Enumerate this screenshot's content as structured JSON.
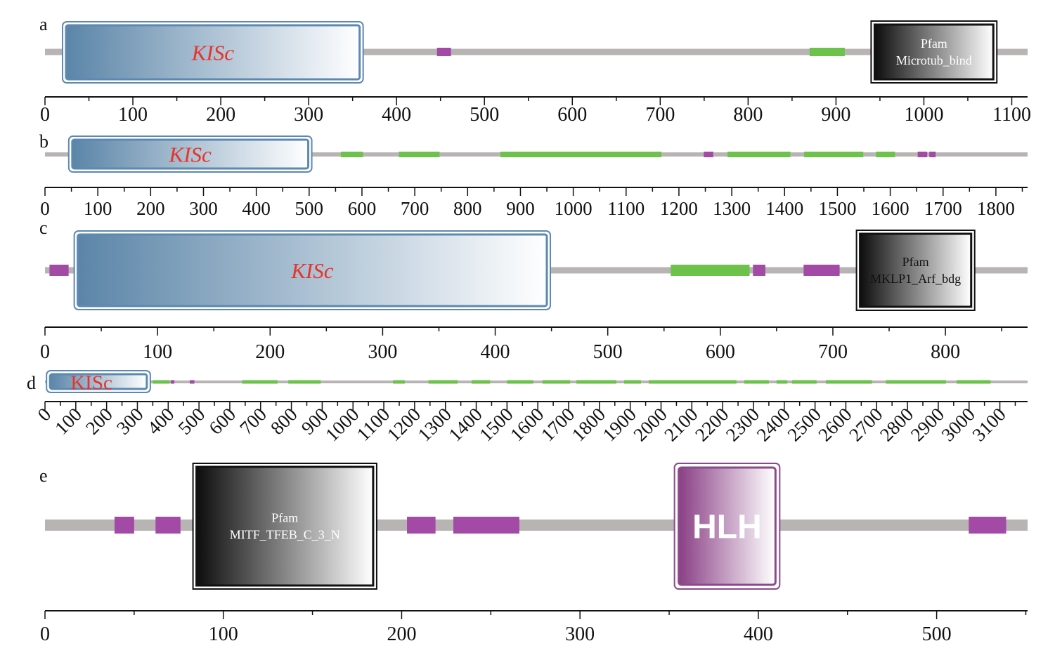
{
  "colors": {
    "backbone": "#b9b4b4",
    "motif_purple": "#a24aa6",
    "motif_green": "#6cc24a",
    "kisc_dark": "#5b85a8",
    "kisc_border": "#5d89b0",
    "kisc_text": "#e8332a",
    "pfam_border": "#111111",
    "hlh_dark": "#8a3f86",
    "hlh_border": "#8a4a8a"
  },
  "panels": [
    {
      "label": "a",
      "length": 1118,
      "ticks": [
        "0",
        "100",
        "200",
        "300",
        "400",
        "500",
        "600",
        "700",
        "800",
        "900",
        "1000",
        "1100"
      ],
      "tick_values": [
        0,
        100,
        200,
        300,
        400,
        500,
        600,
        700,
        800,
        900,
        1000,
        1100
      ],
      "domains": [
        {
          "type": "KISc",
          "label": "KISc",
          "start": 20,
          "end": 362
        },
        {
          "type": "Pfam",
          "label_line1": "Pfam",
          "label_line2": "Microtub_bind",
          "start": 940,
          "end": 1083
        }
      ],
      "motifs": [
        {
          "color": "purple",
          "start": 446,
          "end": 462
        },
        {
          "color": "green",
          "start": 870,
          "end": 910
        }
      ]
    },
    {
      "label": "b",
      "length": 1860,
      "ticks": [
        "0",
        "100",
        "200",
        "300",
        "400",
        "500",
        "600",
        "700",
        "800",
        "900",
        "1000",
        "1100",
        "1200",
        "1300",
        "1400",
        "1500",
        "1600",
        "1700",
        "1800"
      ],
      "tick_values": [
        0,
        100,
        200,
        300,
        400,
        500,
        600,
        700,
        800,
        900,
        1000,
        1100,
        1200,
        1300,
        1400,
        1500,
        1600,
        1700,
        1800
      ],
      "domains": [
        {
          "type": "KISc",
          "label": "KISc",
          "start": 45,
          "end": 505
        }
      ],
      "motifs": [
        {
          "color": "green",
          "start": 560,
          "end": 602
        },
        {
          "color": "green",
          "start": 670,
          "end": 747
        },
        {
          "color": "green",
          "start": 862,
          "end": 1167
        },
        {
          "color": "purple",
          "start": 1247,
          "end": 1265
        },
        {
          "color": "green",
          "start": 1292,
          "end": 1411
        },
        {
          "color": "green",
          "start": 1437,
          "end": 1549
        },
        {
          "color": "green",
          "start": 1573,
          "end": 1609
        },
        {
          "color": "purple",
          "start": 1652,
          "end": 1670
        },
        {
          "color": "purple",
          "start": 1674,
          "end": 1686
        }
      ]
    },
    {
      "label": "c",
      "length": 873,
      "ticks": [
        "0",
        "100",
        "200",
        "300",
        "400",
        "500",
        "600",
        "700",
        "800"
      ],
      "tick_values": [
        0,
        100,
        200,
        300,
        400,
        500,
        600,
        700,
        800
      ],
      "domains": [
        {
          "type": "KISc",
          "label": "KISc",
          "start": 26,
          "end": 449
        },
        {
          "type": "Pfam",
          "label_line1": "Pfam",
          "label_line2": "MKLP1_Arf_bdg",
          "start": 721,
          "end": 826
        }
      ],
      "motifs": [
        {
          "color": "purple",
          "start": 4,
          "end": 21
        },
        {
          "color": "green",
          "start": 556,
          "end": 626
        },
        {
          "color": "purple",
          "start": 629,
          "end": 640
        },
        {
          "color": "purple",
          "start": 674,
          "end": 706
        }
      ]
    },
    {
      "label": "d",
      "length": 3190,
      "ticks": [
        "0",
        "100",
        "200",
        "300",
        "400",
        "500",
        "600",
        "700",
        "800",
        "900",
        "1000",
        "1100",
        "1200",
        "1300",
        "1400",
        "1500",
        "1600",
        "1700",
        "1800",
        "1900",
        "2000",
        "2100",
        "2200",
        "2300",
        "2400",
        "2500",
        "2600",
        "2700",
        "2800",
        "2900",
        "3000",
        "3100"
      ],
      "tick_values": [
        0,
        100,
        200,
        300,
        400,
        500,
        600,
        700,
        800,
        900,
        1000,
        1100,
        1200,
        1300,
        1400,
        1500,
        1600,
        1700,
        1800,
        1900,
        2000,
        2100,
        2200,
        2300,
        2400,
        2500,
        2600,
        2700,
        2800,
        2900,
        3000,
        3100
      ],
      "domains": [
        {
          "type": "KISc",
          "label": "KISc",
          "start": 5,
          "end": 342
        }
      ],
      "motifs": [
        {
          "color": "green",
          "start": 350,
          "end": 405
        },
        {
          "color": "purple",
          "start": 408,
          "end": 420
        },
        {
          "color": "purple",
          "start": 470,
          "end": 485
        },
        {
          "color": "green",
          "start": 640,
          "end": 755
        },
        {
          "color": "green",
          "start": 790,
          "end": 895
        },
        {
          "color": "green",
          "start": 1130,
          "end": 1168
        },
        {
          "color": "green",
          "start": 1245,
          "end": 1340
        },
        {
          "color": "green",
          "start": 1385,
          "end": 1445
        },
        {
          "color": "green",
          "start": 1500,
          "end": 1585
        },
        {
          "color": "green",
          "start": 1615,
          "end": 1705
        },
        {
          "color": "green",
          "start": 1725,
          "end": 1855
        },
        {
          "color": "green",
          "start": 1880,
          "end": 1935
        },
        {
          "color": "green",
          "start": 1960,
          "end": 2245
        },
        {
          "color": "green",
          "start": 2270,
          "end": 2350
        },
        {
          "color": "green",
          "start": 2375,
          "end": 2410
        },
        {
          "color": "green",
          "start": 2425,
          "end": 2505
        },
        {
          "color": "green",
          "start": 2535,
          "end": 2685
        },
        {
          "color": "green",
          "start": 2730,
          "end": 2925
        },
        {
          "color": "green",
          "start": 2960,
          "end": 3070
        }
      ]
    },
    {
      "label": "e",
      "length": 551,
      "ticks": [
        "0",
        "100",
        "200",
        "300",
        "400",
        "500"
      ],
      "tick_values": [
        0,
        100,
        200,
        300,
        400,
        500
      ],
      "domains": [
        {
          "type": "Pfam",
          "label_line1": "Pfam",
          "label_line2": "MITF_TFEB_C_3_N",
          "start": 83,
          "end": 186
        },
        {
          "type": "HLH",
          "label": "HLH",
          "start": 353,
          "end": 412
        }
      ],
      "motifs": [
        {
          "color": "purple",
          "start": 39,
          "end": 50
        },
        {
          "color": "purple",
          "start": 62,
          "end": 76
        },
        {
          "color": "purple",
          "start": 203,
          "end": 219
        },
        {
          "color": "purple",
          "start": 229,
          "end": 266
        },
        {
          "color": "purple",
          "start": 518,
          "end": 539
        }
      ]
    }
  ]
}
